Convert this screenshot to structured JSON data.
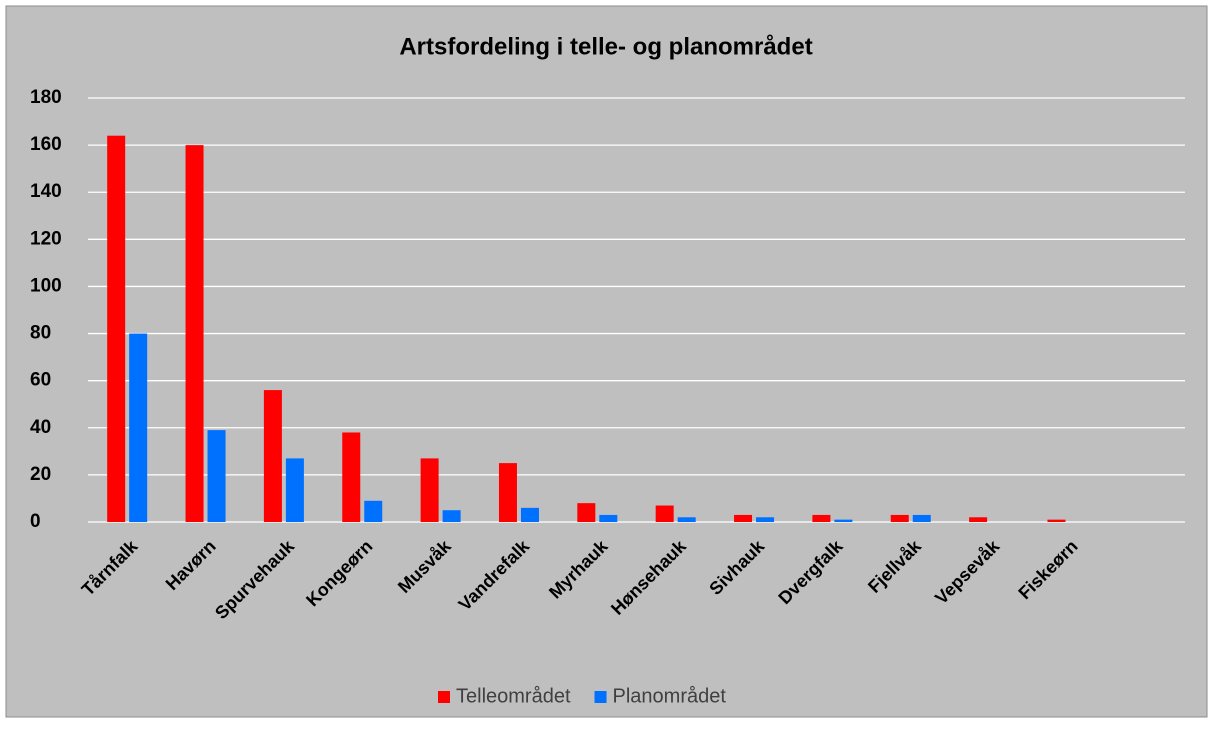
{
  "chart_data": {
    "type": "bar",
    "title": "Artsfordeling i telle- og planområdet",
    "categories": [
      "Tårnfalk",
      "Havørn",
      "Spurvehauk",
      "Kongeørn",
      "Musvåk",
      "Vandrefalk",
      "Myrhauk",
      "Hønsehauk",
      "Sivhauk",
      "Dvergfalk",
      "Fjellvåk",
      "Vepsevåk",
      "Fiskeørn",
      null
    ],
    "series": [
      {
        "name": "Telleområdet",
        "color": "#ff0000",
        "values": [
          164,
          160,
          56,
          38,
          27,
          25,
          8,
          7,
          3,
          3,
          3,
          2,
          1,
          null
        ]
      },
      {
        "name": "Planområdet",
        "color": "#0070ff",
        "values": [
          80,
          39,
          27,
          9,
          5,
          6,
          3,
          2,
          2,
          1,
          3,
          0,
          0,
          null
        ]
      }
    ],
    "ylim": [
      0,
      180
    ],
    "yticks": [
      0,
      20,
      40,
      60,
      80,
      100,
      120,
      140,
      160,
      180
    ],
    "grid": true,
    "legend": "bottom"
  }
}
